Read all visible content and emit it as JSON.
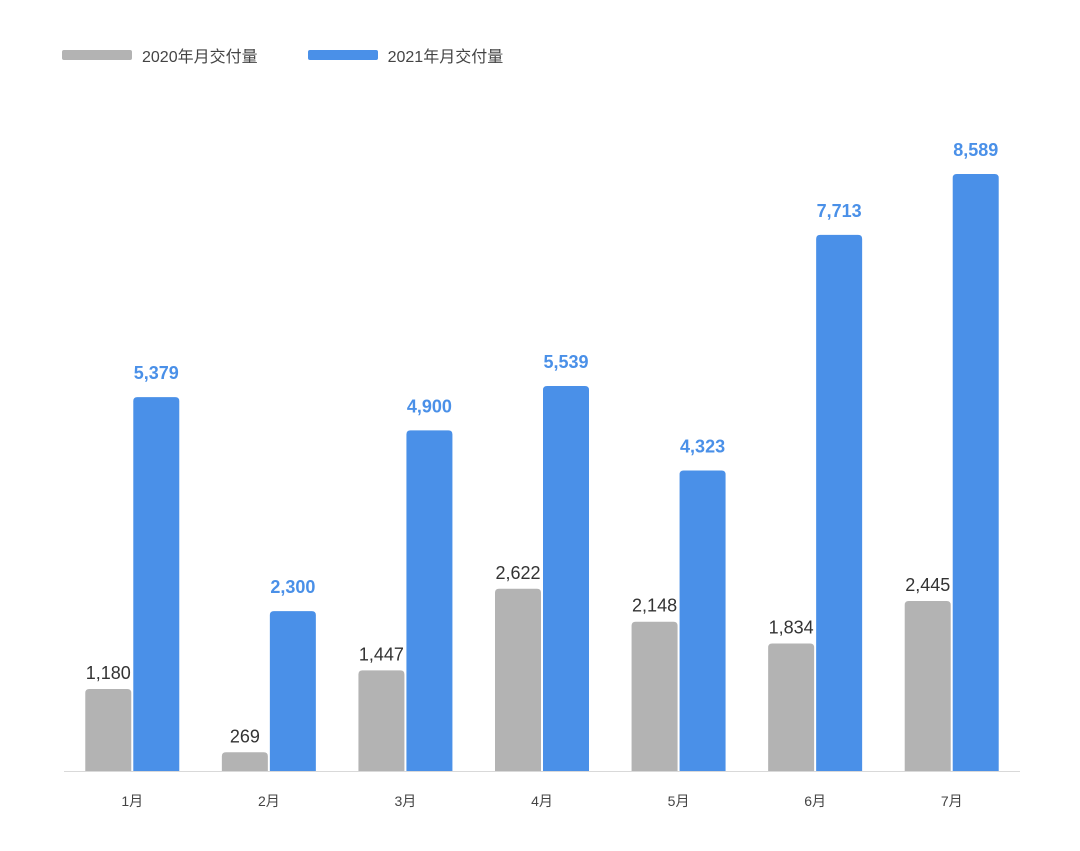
{
  "chart_data": {
    "type": "bar",
    "categories": [
      "1月",
      "2月",
      "3月",
      "4月",
      "5月",
      "6月",
      "7月"
    ],
    "series": [
      {
        "name": "2020年月交付量",
        "values": [
          1180,
          269,
          1447,
          2622,
          2148,
          1834,
          2445
        ],
        "labels": [
          "1,180",
          "269",
          "1,447",
          "2,622",
          "2,148",
          "1,834",
          "2,445"
        ],
        "color": "#b3b3b3",
        "label_color": "#333333"
      },
      {
        "name": "2021年月交付量",
        "values": [
          5379,
          2300,
          4900,
          5539,
          4323,
          7713,
          8589
        ],
        "labels": [
          "5,379",
          "2,300",
          "4,900",
          "5,539",
          "4,323",
          "7,713",
          "8,589"
        ],
        "color": "#4a90e8",
        "label_color": "#4a90e8"
      }
    ],
    "ylim": [
      0,
      9000
    ],
    "grid": false,
    "legend_position": "top-left",
    "axis_color": "#d9d9d9"
  }
}
